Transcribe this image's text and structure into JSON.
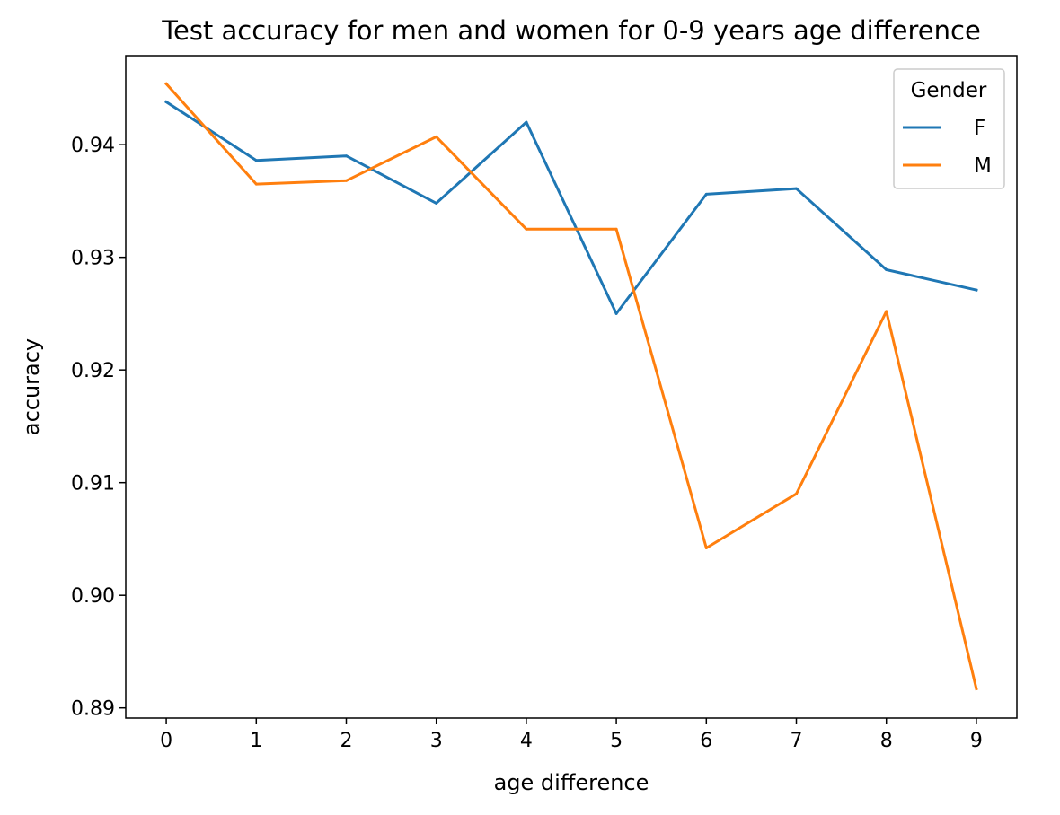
{
  "chart_data": {
    "type": "line",
    "title": "Test accuracy for men and women for 0-9 years age difference",
    "xlabel": "age difference",
    "ylabel": "accuracy",
    "x": [
      0,
      1,
      2,
      3,
      4,
      5,
      6,
      7,
      8,
      9
    ],
    "xticks": [
      "0",
      "1",
      "2",
      "3",
      "4",
      "5",
      "6",
      "7",
      "8",
      "9"
    ],
    "xlim": [
      -0.45,
      9.45
    ],
    "yticks": [
      "0.89",
      "0.90",
      "0.91",
      "0.92",
      "0.93",
      "0.94"
    ],
    "ylim": [
      0.8891,
      0.9479
    ],
    "grid": false,
    "legend": {
      "title": "Gender",
      "position": "top-right"
    },
    "series": [
      {
        "name": "F",
        "color": "#1f77b4",
        "values": [
          0.9438,
          0.9386,
          0.939,
          0.9348,
          0.942,
          0.925,
          0.9356,
          0.9361,
          0.9289,
          0.9271
        ]
      },
      {
        "name": "M",
        "color": "#ff7f0e",
        "values": [
          0.9454,
          0.9365,
          0.9368,
          0.9407,
          0.9325,
          0.9325,
          0.9042,
          0.909,
          0.9252,
          0.8917
        ]
      }
    ]
  }
}
